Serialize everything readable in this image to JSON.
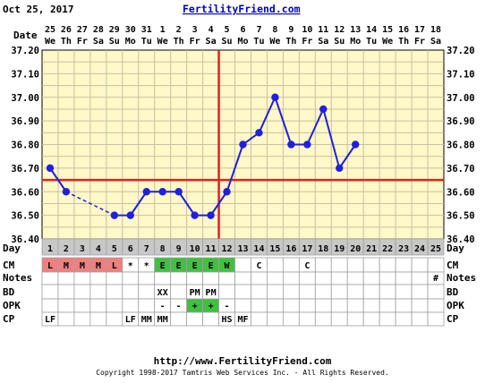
{
  "header": {
    "date": "Oct 25, 2017",
    "brand": "FertilityFriend.com"
  },
  "row_labels": {
    "date": "Date",
    "day": "Day",
    "cm": "CM",
    "notes": "Notes",
    "bd": "BD",
    "opk": "OPK",
    "cp": "CP"
  },
  "footer": {
    "url": "http://www.FertilityFriend.com",
    "copyright": "Copyright 1998-2017 Tamtris Web Services Inc. - All Rights Reserved."
  },
  "colors": {
    "background": "#fff8c8",
    "grid": "#c8c0a0",
    "line": "#2020dd",
    "point": "#2020dd",
    "coverline": "#dd2222",
    "ovulation": "#dd2222",
    "cm_menses": "#f08080",
    "cm_egg_white": "#40c040",
    "opk_positive": "#40c040",
    "day_cell": "#c8c8c8"
  },
  "chart_data": {
    "type": "line",
    "title": "",
    "xlabel": "Day",
    "ylabel": "",
    "ylim": [
      36.4,
      37.2
    ],
    "y_ticks": [
      "36.40",
      "36.50",
      "36.60",
      "36.70",
      "36.80",
      "36.90",
      "37.00",
      "37.10",
      "37.20"
    ],
    "grid": true,
    "dates": [
      "25",
      "26",
      "27",
      "28",
      "29",
      "30",
      "31",
      "1",
      "2",
      "3",
      "4",
      "5",
      "6",
      "7",
      "8",
      "9",
      "10",
      "11",
      "12",
      "13",
      "14",
      "15",
      "16",
      "17",
      "18"
    ],
    "weekdays": [
      "We",
      "Th",
      "Fr",
      "Sa",
      "Su",
      "Mo",
      "Tu",
      "We",
      "Th",
      "Fr",
      "Sa",
      "Su",
      "Mo",
      "Tu",
      "We",
      "Th",
      "Fr",
      "Sa",
      "Su",
      "Mo",
      "Tu",
      "We",
      "Th",
      "Fr",
      "Sa"
    ],
    "days": [
      1,
      2,
      3,
      4,
      5,
      6,
      7,
      8,
      9,
      10,
      11,
      12,
      13,
      14,
      15,
      16,
      17,
      18,
      19,
      20,
      21,
      22,
      23,
      24,
      25
    ],
    "series": [
      {
        "values": [
          36.7,
          36.6,
          null,
          null,
          36.5,
          36.5,
          36.6,
          36.6,
          36.6,
          36.5,
          36.5,
          36.6,
          36.8,
          36.85,
          37.0,
          36.8,
          36.8,
          36.95,
          36.7,
          36.8,
          null,
          null,
          null,
          null,
          null
        ],
        "dashed_gaps": [
          [
            2,
            5
          ]
        ]
      }
    ],
    "coverline": 36.65,
    "ovulation_day": 12,
    "cm": [
      "L",
      "M",
      "M",
      "M",
      "L",
      "*",
      "*",
      "E",
      "E",
      "E",
      "E",
      "W",
      "",
      "C",
      "",
      "",
      "C",
      "",
      "",
      "",
      "",
      "",
      "",
      "",
      ""
    ],
    "notes": [
      "",
      "",
      "",
      "",
      "",
      "",
      "",
      "",
      "",
      "",
      "",
      "",
      "",
      "",
      "",
      "",
      "",
      "",
      "",
      "",
      "",
      "",
      "",
      "",
      "#"
    ],
    "bd": [
      "",
      "",
      "",
      "",
      "",
      "",
      "",
      "XX",
      "",
      "PM",
      "PM",
      "",
      "",
      "",
      "",
      "",
      "",
      "",
      "",
      "",
      "",
      "",
      "",
      "",
      ""
    ],
    "opk": [
      "",
      "",
      "",
      "",
      "",
      "",
      "",
      "-",
      "-",
      "+",
      "+",
      "-",
      "",
      "",
      "",
      "",
      "",
      "",
      "",
      "",
      "",
      "",
      "",
      "",
      ""
    ],
    "cp": [
      "LF",
      "",
      "",
      "",
      "",
      "LF",
      "MM",
      "MM",
      "",
      "",
      "",
      "HS",
      "MF",
      "",
      "",
      "",
      "",
      "",
      "",
      "",
      "",
      "",
      "",
      "",
      ""
    ]
  }
}
